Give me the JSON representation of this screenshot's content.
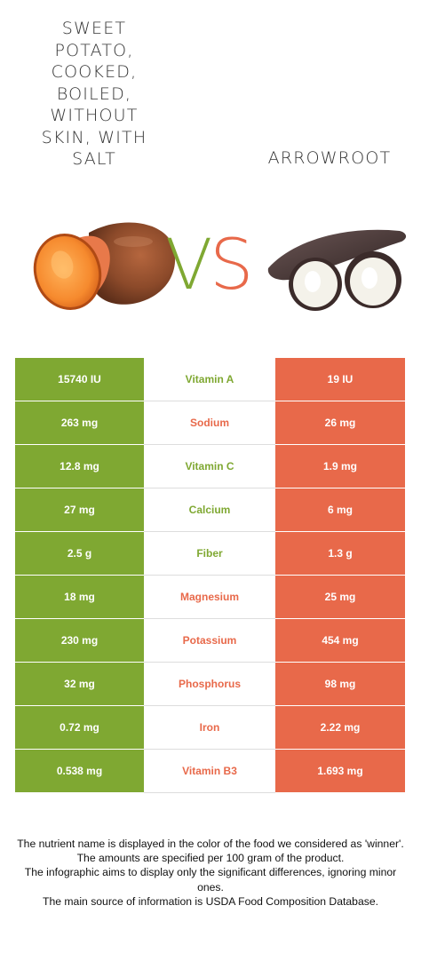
{
  "foods": {
    "left": {
      "name": "SWEET POTATO, COOKED, BOILED, WITHOUT SKIN, WITH SALT",
      "color": "#7fa832"
    },
    "right": {
      "name": "ARROWROOT",
      "color": "#e8694a"
    }
  },
  "vs": {
    "v": "V",
    "s": "S"
  },
  "rows": [
    {
      "left": "15740 IU",
      "nutrient": "Vitamin A",
      "right": "19 IU",
      "winner": "left"
    },
    {
      "left": "263 mg",
      "nutrient": "Sodium",
      "right": "26 mg",
      "winner": "right"
    },
    {
      "left": "12.8 mg",
      "nutrient": "Vitamin C",
      "right": "1.9 mg",
      "winner": "left"
    },
    {
      "left": "27 mg",
      "nutrient": "Calcium",
      "right": "6 mg",
      "winner": "left"
    },
    {
      "left": "2.5 g",
      "nutrient": "Fiber",
      "right": "1.3 g",
      "winner": "left"
    },
    {
      "left": "18 mg",
      "nutrient": "Magnesium",
      "right": "25 mg",
      "winner": "right"
    },
    {
      "left": "230 mg",
      "nutrient": "Potassium",
      "right": "454 mg",
      "winner": "right"
    },
    {
      "left": "32 mg",
      "nutrient": "Phosphorus",
      "right": "98 mg",
      "winner": "right"
    },
    {
      "left": "0.72 mg",
      "nutrient": "Iron",
      "right": "2.22 mg",
      "winner": "right"
    },
    {
      "left": "0.538 mg",
      "nutrient": "Vitamin B3",
      "right": "1.693 mg",
      "winner": "right"
    }
  ],
  "notes": [
    "The nutrient name is displayed in the color of the food we considered as 'winner'.",
    "The amounts are specified per 100 gram of the product.",
    "The infographic aims to display only the significant differences, ignoring minor ones.",
    "The main source of information is USDA Food Composition Database."
  ]
}
